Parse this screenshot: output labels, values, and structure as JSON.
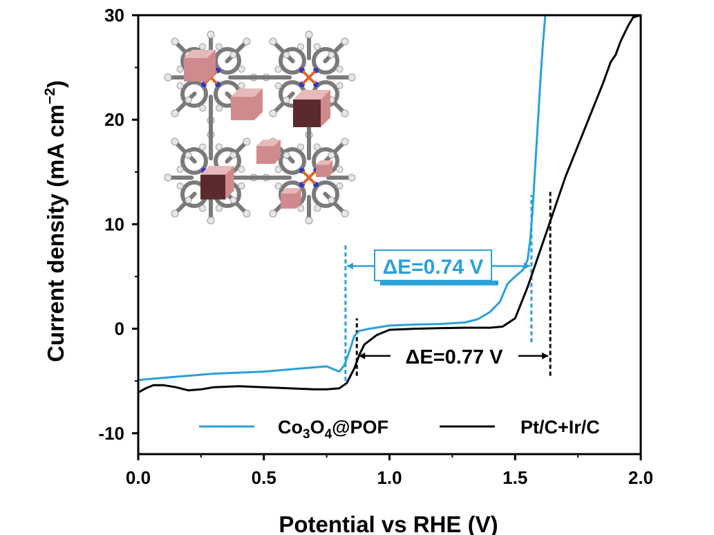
{
  "chart_data": {
    "type": "line",
    "xlabel": "Potential vs RHE (V)",
    "ylabel_main": "Current density (mA cm",
    "ylabel_sup": "−2",
    "ylabel_close": ")",
    "xlim": [
      0.0,
      2.0
    ],
    "ylim": [
      -12,
      30
    ],
    "xticks": [
      0.0,
      0.5,
      1.0,
      1.5,
      2.0
    ],
    "xtick_labels": [
      "0.0",
      "0.5",
      "1.0",
      "1.5",
      "2.0"
    ],
    "yticks": [
      -10,
      0,
      10,
      20,
      30
    ],
    "ytick_labels": [
      "-10",
      "0",
      "10",
      "20",
      "30"
    ],
    "grid": false,
    "legend_position": "bottom",
    "series": [
      {
        "name": "Co3O4@POF",
        "name_parts": [
          "Co",
          "3",
          "O",
          "4",
          "@POF"
        ],
        "color": "#2aa0d8",
        "x": [
          0.0,
          0.1,
          0.2,
          0.3,
          0.4,
          0.5,
          0.6,
          0.7,
          0.75,
          0.8,
          0.82,
          0.84,
          0.86,
          0.88,
          0.92,
          1.0,
          1.1,
          1.2,
          1.3,
          1.35,
          1.4,
          1.44,
          1.47,
          1.5,
          1.53,
          1.55,
          1.56,
          1.57,
          1.58,
          1.59,
          1.6,
          1.61,
          1.62
        ],
        "y": [
          -4.9,
          -4.7,
          -4.5,
          -4.3,
          -4.2,
          -4.1,
          -3.9,
          -3.7,
          -3.6,
          -4.1,
          -3.5,
          -2.2,
          -0.7,
          -0.2,
          0.0,
          0.3,
          0.4,
          0.45,
          0.6,
          0.9,
          1.6,
          2.6,
          4.3,
          5.0,
          5.6,
          6.6,
          8.5,
          11.5,
          15.5,
          19.5,
          23.5,
          27.0,
          30.0
        ]
      },
      {
        "name": "Pt/C+Ir/C",
        "color": "#000000",
        "x": [
          0.0,
          0.03,
          0.06,
          0.1,
          0.15,
          0.2,
          0.25,
          0.3,
          0.4,
          0.5,
          0.6,
          0.7,
          0.75,
          0.8,
          0.83,
          0.86,
          0.88,
          0.9,
          0.95,
          1.0,
          1.1,
          1.2,
          1.3,
          1.4,
          1.45,
          1.5,
          1.55,
          1.6,
          1.65,
          1.7,
          1.75,
          1.8,
          1.85,
          1.88,
          1.9,
          1.92,
          1.95,
          1.97,
          2.0
        ],
        "y": [
          -6.1,
          -5.7,
          -5.4,
          -5.4,
          -5.6,
          -5.9,
          -5.8,
          -5.6,
          -5.5,
          -5.6,
          -5.7,
          -5.8,
          -5.8,
          -5.7,
          -5.2,
          -3.8,
          -2.5,
          -1.5,
          -0.6,
          -0.1,
          0.0,
          0.05,
          0.1,
          0.1,
          0.2,
          1.0,
          4.0,
          7.5,
          11.0,
          14.5,
          17.5,
          20.5,
          23.5,
          25.5,
          26.2,
          27.5,
          29.0,
          29.8,
          30.0
        ]
      }
    ],
    "annotations": [
      {
        "text": "ΔE=0.74 V",
        "color": "#2aa0d8",
        "x_from": 0.825,
        "x_to": 1.565,
        "y": 6.0
      },
      {
        "text": "ΔE=0.77 V",
        "color": "#000000",
        "x_from": 0.87,
        "x_to": 1.64,
        "y": -2.6
      }
    ],
    "reference_lines": [
      {
        "x": 0.825,
        "y_from": -5.0,
        "y_to": 8.0,
        "color": "#2aa0d8"
      },
      {
        "x": 1.565,
        "y_from": -1.3,
        "y_to": 12.8,
        "color": "#2aa0d8"
      },
      {
        "x": 0.87,
        "y_from": -4.5,
        "y_to": 1.0,
        "color": "#000000"
      },
      {
        "x": 1.64,
        "y_from": -4.5,
        "y_to": 13.2,
        "color": "#000000"
      }
    ]
  },
  "colors": {
    "blue": "#2aa0d8",
    "black": "#000000",
    "cube_light": "#e8b9ba",
    "cube_mid": "#cf8a8d",
    "cube_dark": "#5a2a2c",
    "cobalt_center": "#e0652a",
    "nitrogen": "#3035c8",
    "carbon": "#7a7a7a",
    "hydrogen": "#e6e6e6"
  },
  "inset_icon": "porphyrin-framework-with-co3o4-cubes"
}
